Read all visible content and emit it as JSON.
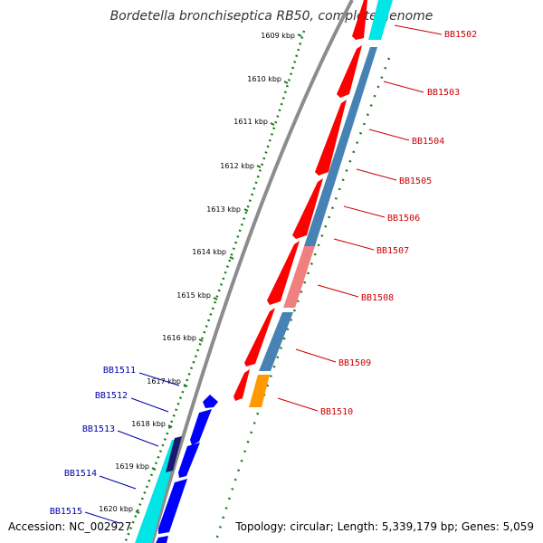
{
  "title": "Bordetella bronchiseptica RB50, complete genome",
  "footer": {
    "accession": "Accession: NC_002927",
    "summary": "Topology: circular; Length: 5,339,179 bp; Genes: 5,059"
  },
  "colors": {
    "backbone": "#8c8c8c",
    "tick": "#1a7a1a",
    "forward_gene": "#ff0000",
    "reverse_gene": "#0000ff",
    "cds_track": "#4682b4",
    "cds_track_light": "#f08080",
    "rna_track": "#00e5e5",
    "misc_track": "#ff9900",
    "label_red": "#cc0000",
    "label_blue": "#0000aa"
  },
  "ticks": [
    "1609 kbp",
    "1610 kbp",
    "1611 kbp",
    "1612 kbp",
    "1613 kbp",
    "1614 kbp",
    "1615 kbp",
    "1616 kbp",
    "1617 kbp",
    "1618 kbp",
    "1619 kbp",
    "1620 kbp"
  ],
  "right_labels": [
    "BB1502",
    "BB1503",
    "BB1504",
    "BB1505",
    "BB1506",
    "BB1507",
    "BB1508",
    "BB1509",
    "BB1510"
  ],
  "left_labels": [
    "BB1511",
    "BB1512",
    "BB1513",
    "BB1514",
    "BB1515"
  ]
}
